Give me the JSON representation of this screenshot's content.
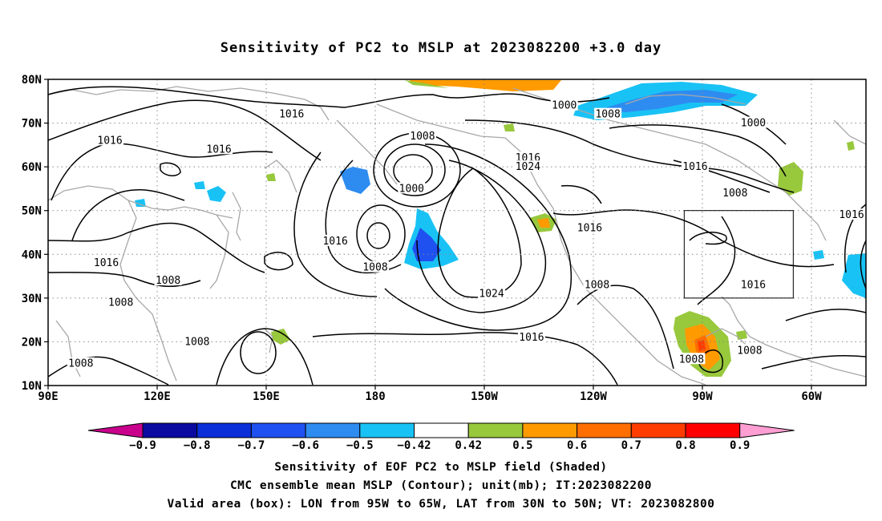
{
  "title": "Sensitivity of PC2 to MSLP at 2023082200 +3.0 day",
  "lat_ticks": [
    {
      "value": 80,
      "label": "80N"
    },
    {
      "value": 70,
      "label": "70N"
    },
    {
      "value": 60,
      "label": "60N"
    },
    {
      "value": 50,
      "label": "50N"
    },
    {
      "value": 40,
      "label": "40N"
    },
    {
      "value": 30,
      "label": "30N"
    },
    {
      "value": 20,
      "label": "20N"
    },
    {
      "value": 10,
      "label": "10N"
    }
  ],
  "lon_ticks": [
    {
      "value": 90,
      "label": "90E"
    },
    {
      "value": 120,
      "label": "120E"
    },
    {
      "value": 150,
      "label": "150E"
    },
    {
      "value": 180,
      "label": "180"
    },
    {
      "value": 210,
      "label": "150W"
    },
    {
      "value": 240,
      "label": "120W"
    },
    {
      "value": 270,
      "label": "90W"
    },
    {
      "value": 300,
      "label": "60W"
    }
  ],
  "extent": {
    "lon_min": 90,
    "lon_max": 315,
    "lat_min": 10,
    "lat_max": 80
  },
  "valid_box": {
    "lon_min": 265,
    "lon_max": 295,
    "lat_min": 30,
    "lat_max": 50
  },
  "colorbar": {
    "labels": [
      "-0.9",
      "-0.8",
      "-0.7",
      "-0.6",
      "-0.5",
      "-0.42",
      "0.42",
      "0.5",
      "0.6",
      "0.7",
      "0.8",
      "0.9"
    ],
    "colors": [
      "#c8008c",
      "#0a0aa0",
      "#0b2fd8",
      "#1f50f0",
      "#2e8cf0",
      "#19c2f5",
      "#ffffff",
      "#98c83c",
      "#ff9b00",
      "#ff6e00",
      "#ff3c00",
      "#ff0000",
      "#ff9ed2"
    ]
  },
  "contour_labels": [
    {
      "text": "1016",
      "lon": 157,
      "lat": 72
    },
    {
      "text": "1016",
      "lon": 107,
      "lat": 66
    },
    {
      "text": "1016",
      "lon": 137,
      "lat": 64
    },
    {
      "text": "1008",
      "lon": 193,
      "lat": 67
    },
    {
      "text": "1000",
      "lon": 190,
      "lat": 55
    },
    {
      "text": "1016",
      "lon": 169,
      "lat": 43
    },
    {
      "text": "1008",
      "lon": 180,
      "lat": 37
    },
    {
      "text": "1016",
      "lon": 106,
      "lat": 38
    },
    {
      "text": "1008",
      "lon": 123,
      "lat": 34
    },
    {
      "text": "1008",
      "lon": 110,
      "lat": 29
    },
    {
      "text": "1008",
      "lon": 131,
      "lat": 20
    },
    {
      "text": "1008",
      "lon": 99,
      "lat": 15
    },
    {
      "text": "1016",
      "lon": 222,
      "lat": 62
    },
    {
      "text": "1024",
      "lon": 222,
      "lat": 60
    },
    {
      "text": "1000",
      "lon": 232,
      "lat": 74
    },
    {
      "text": "1008",
      "lon": 244,
      "lat": 72
    },
    {
      "text": "1000",
      "lon": 284,
      "lat": 70
    },
    {
      "text": "1016",
      "lon": 268,
      "lat": 60
    },
    {
      "text": "1008",
      "lon": 279,
      "lat": 54
    },
    {
      "text": "1016",
      "lon": 239,
      "lat": 46
    },
    {
      "text": "1008",
      "lon": 241,
      "lat": 33
    },
    {
      "text": "1024",
      "lon": 212,
      "lat": 31
    },
    {
      "text": "1016",
      "lon": 223,
      "lat": 21
    },
    {
      "text": "1016",
      "lon": 284,
      "lat": 33
    },
    {
      "text": "1008",
      "lon": 283,
      "lat": 18
    },
    {
      "text": "1008",
      "lon": 267,
      "lat": 16
    },
    {
      "text": "1016",
      "lon": 314,
      "lat": 49
    }
  ],
  "captions": [
    "Sensitivity of EOF PC2 to MSLP field (Shaded)",
    "CMC ensemble mean MSLP (Contour); unit(mb); IT:2023082200",
    "Valid area (box): LON from 95W to 65W, LAT from 30N to 50N; VT: 2023082800"
  ]
}
